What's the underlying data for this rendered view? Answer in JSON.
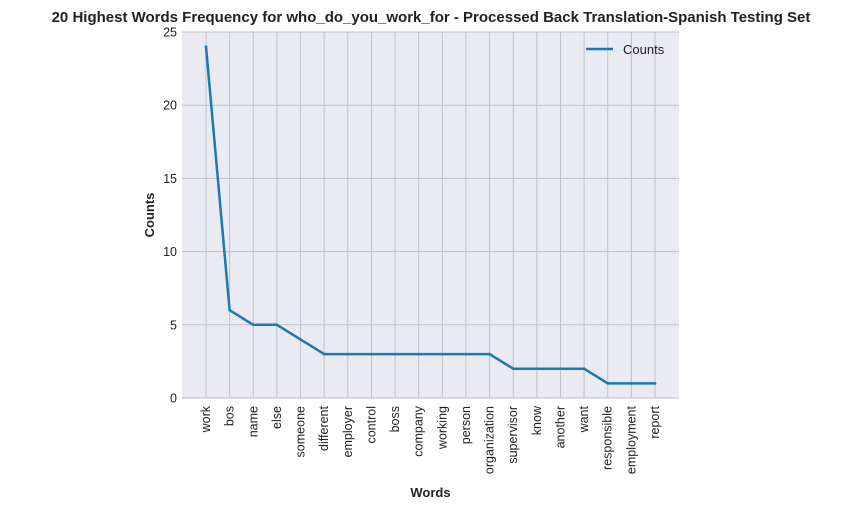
{
  "chart_data": {
    "type": "line",
    "title": "20 Highest Words Frequency for who_do_you_work_for - Processed Back Translation-Spanish Testing Set",
    "xlabel": "Words",
    "ylabel": "Counts",
    "categories": [
      "work",
      "bos",
      "name",
      "else",
      "someone",
      "different",
      "employer",
      "control",
      "boss",
      "company",
      "working",
      "person",
      "organization",
      "supervisor",
      "know",
      "another",
      "want",
      "responsible",
      "employment",
      "report"
    ],
    "series": [
      {
        "name": "Counts",
        "values": [
          24,
          6,
          5,
          5,
          4,
          3,
          3,
          3,
          3,
          3,
          3,
          3,
          3,
          2,
          2,
          2,
          2,
          1,
          1,
          1
        ],
        "color": "#1f77b4"
      }
    ],
    "ylim": [
      0,
      25
    ],
    "yticks": [
      0,
      5,
      10,
      15,
      20,
      25
    ],
    "grid": true,
    "legend_position": "top-right",
    "background": "#eaeaf2",
    "grid_color": "#c0c0c8"
  }
}
